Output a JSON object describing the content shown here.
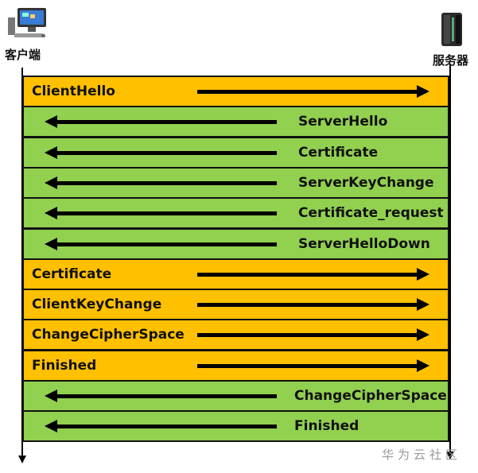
{
  "actors": {
    "client": {
      "label": "客户端",
      "icon": "desktop-computer-icon"
    },
    "server": {
      "label": "服务器",
      "icon": "server-rack-icon"
    }
  },
  "colors": {
    "client_to_server": "#FFC000",
    "server_to_client": "#92D050"
  },
  "messages": [
    {
      "label": "ClientHello",
      "direction": "client_to_server"
    },
    {
      "label": "ServerHello",
      "direction": "server_to_client"
    },
    {
      "label": "Certificate",
      "direction": "server_to_client"
    },
    {
      "label": "ServerKeyChange",
      "direction": "server_to_client"
    },
    {
      "label": "Certificate_request",
      "direction": "server_to_client"
    },
    {
      "label": "ServerHelloDown",
      "direction": "server_to_client"
    },
    {
      "label": "Certificate",
      "direction": "client_to_server"
    },
    {
      "label": "ClientKeyChange",
      "direction": "client_to_server"
    },
    {
      "label": "ChangeCipherSpace",
      "direction": "client_to_server"
    },
    {
      "label": "Finished",
      "direction": "client_to_server"
    },
    {
      "label": "ChangeCipherSpace",
      "direction": "server_to_client"
    },
    {
      "label": "Finished",
      "direction": "server_to_client"
    }
  ],
  "watermark": "华为云社区"
}
